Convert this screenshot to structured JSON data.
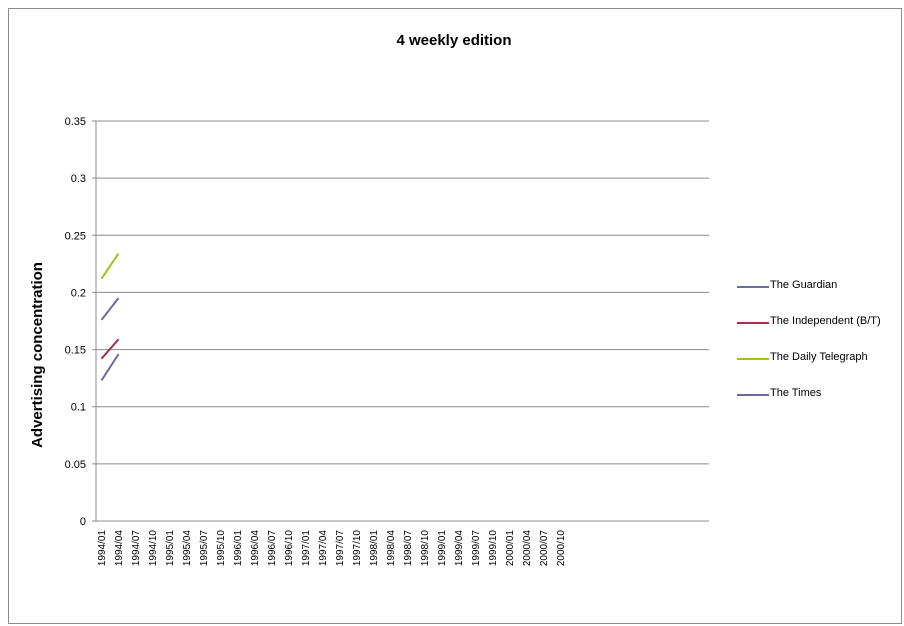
{
  "chart_data": {
    "type": "line",
    "title": "4 weekly edition",
    "xlabel": "",
    "ylabel": "Advertising concentration",
    "ylim": [
      0,
      0.35
    ],
    "y_ticks": [
      "0",
      "0.05",
      "0.1",
      "0.15",
      "0.2",
      "0.25",
      "0.3",
      "0.35"
    ],
    "y_tick_values": [
      0,
      0.05,
      0.1,
      0.15,
      0.2,
      0.25,
      0.3,
      0.35
    ],
    "categories": [
      "1994/01",
      "1994/04",
      "1994/07",
      "1994/10",
      "1995/01",
      "1995/04",
      "1995/07",
      "1995/10",
      "1996/01",
      "1996/04",
      "1996/07",
      "1996/10",
      "1997/01",
      "1997/04",
      "1997/07",
      "1997/10",
      "1998/01",
      "1998/04",
      "1998/07",
      "1998/10",
      "1999/01",
      "1999/04",
      "1999/07",
      "1999/10",
      "2000/01",
      "2000/04",
      "2000/07",
      "2000/10"
    ],
    "grid": true,
    "legend_position": "right",
    "series": [
      {
        "name": "The Guardian",
        "color": "#6e6aa6",
        "points": [
          {
            "x": "1994/01",
            "y": 0.176
          },
          {
            "x": "1994/04",
            "y": 0.195
          }
        ]
      },
      {
        "name": "The Independent (B/T)",
        "color": "#a0334d",
        "points": [
          {
            "x": "1994/01",
            "y": 0.142
          },
          {
            "x": "1994/04",
            "y": 0.159
          }
        ]
      },
      {
        "name": "The Daily Telegraph",
        "color": "#9ac41f",
        "points": [
          {
            "x": "1994/01",
            "y": 0.212
          },
          {
            "x": "1994/04",
            "y": 0.234
          }
        ]
      },
      {
        "name": "The Times",
        "color": "#6e6aa6",
        "points": [
          {
            "x": "1994/01",
            "y": 0.123
          },
          {
            "x": "1994/04",
            "y": 0.146
          }
        ]
      }
    ]
  }
}
